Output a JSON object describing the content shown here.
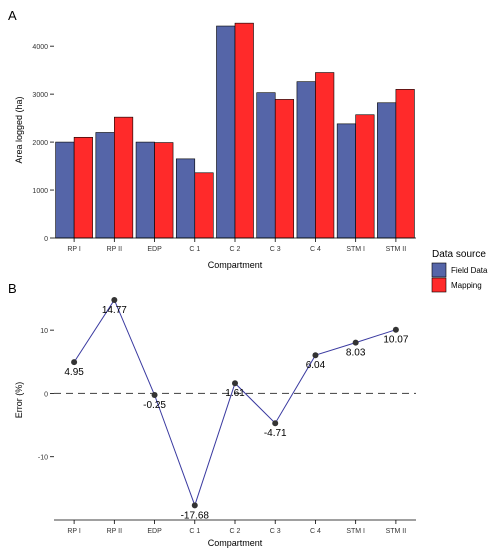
{
  "chart_data": [
    {
      "panel_label": "A",
      "type": "bar",
      "xlabel": "Compartment",
      "ylabel": "Area logged (ha)",
      "ylim": [
        0,
        4650
      ],
      "yticks": [
        0,
        1000,
        2000,
        3000,
        4000
      ],
      "grid": false,
      "categories": [
        "RP I",
        "RP II",
        "EDP",
        "C 1",
        "C 2",
        "C 3",
        "C 4",
        "STM I",
        "STM II"
      ],
      "series": [
        {
          "name": "Field Data",
          "color": "#5565a8",
          "values": [
            2000,
            2200,
            2000,
            1650,
            4420,
            3030,
            3260,
            2380,
            2820
          ]
        },
        {
          "name": "Mapping",
          "color": "#ff2a2a",
          "values": [
            2100,
            2520,
            1990,
            1360,
            4480,
            2890,
            3450,
            2570,
            3100
          ]
        }
      ],
      "legend": {
        "title": "Data source",
        "position": "right",
        "entries": [
          "Field Data",
          "Mapping"
        ]
      }
    },
    {
      "panel_label": "B",
      "type": "line",
      "xlabel": "Compartment",
      "ylabel": "Error (%)",
      "ylim": [
        -20,
        16.5
      ],
      "yticks": [
        -10,
        0,
        10
      ],
      "grid": false,
      "reference_line": 0,
      "categories": [
        "RP I",
        "RP II",
        "EDP",
        "C 1",
        "C 2",
        "C 3",
        "C 4",
        "STM I",
        "STM II"
      ],
      "values": [
        4.95,
        14.77,
        -0.25,
        -17.68,
        1.61,
        -4.71,
        6.04,
        8.03,
        10.07
      ],
      "value_labels": [
        "4.95",
        "14.77",
        "-0.25",
        "-17.68",
        "1.61",
        "-4.71",
        "6.04",
        "8.03",
        "10.07"
      ],
      "line_color": "#3a3aa0",
      "point_color": "#333333"
    }
  ]
}
